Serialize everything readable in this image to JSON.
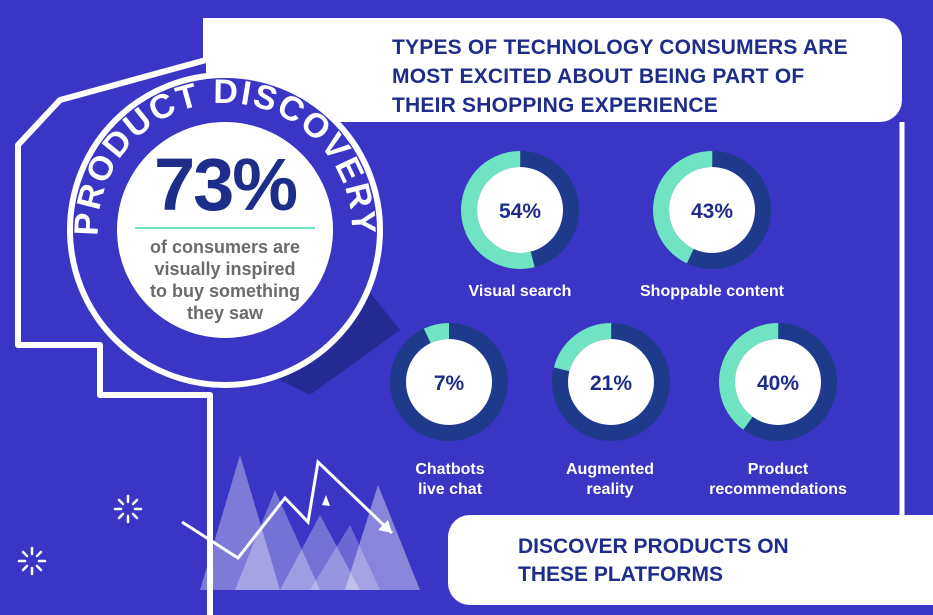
{
  "headline": {
    "line1": "TYPES OF TECHNOLOGY CONSUMERS ARE",
    "line2": "MOST EXCITED ABOUT BEING PART OF",
    "line3": "THEIR SHOPPING EXPERIENCE"
  },
  "badge": {
    "arc_text": "PRODUCT DISCOVERY",
    "percent": "73%",
    "line1": "of consumers are",
    "line2": "visually inspired",
    "line3": "to buy something",
    "line4": "they saw",
    "value": 73
  },
  "stats": [
    {
      "percent_label": "54%",
      "value": 54,
      "label_line1": "Visual search",
      "label_line2": ""
    },
    {
      "percent_label": "43%",
      "value": 43,
      "label_line1": "Shoppable content",
      "label_line2": ""
    },
    {
      "percent_label": "7%",
      "value": 7,
      "label_line1": "Chatbots",
      "label_line2": "live chat"
    },
    {
      "percent_label": "21%",
      "value": 21,
      "label_line1": "Augmented",
      "label_line2": "reality"
    },
    {
      "percent_label": "40%",
      "value": 40,
      "label_line1": "Product",
      "label_line2": "recommendations"
    }
  ],
  "footer": {
    "line1": "DISCOVER PRODUCTS ON",
    "line2": "THESE PLATFORMS"
  },
  "colors": {
    "background": "#3a35c4",
    "navy": "#1e2d8a",
    "ring_track": "#1e3a8a",
    "ring_fill": "#6fe3c2",
    "white": "#ffffff"
  }
}
